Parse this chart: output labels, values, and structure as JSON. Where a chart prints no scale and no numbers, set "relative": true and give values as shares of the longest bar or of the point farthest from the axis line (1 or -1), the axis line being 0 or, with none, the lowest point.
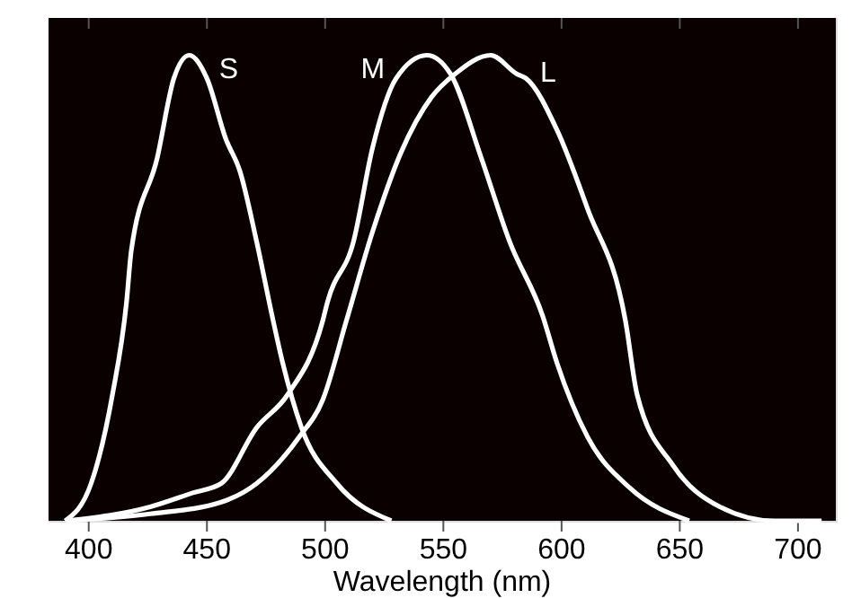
{
  "chart_data": {
    "type": "line",
    "relative": true,
    "xlabel": "Wavelength (nm)",
    "xlim": [
      383,
      716
    ],
    "xticks": [
      400,
      450,
      500,
      550,
      600,
      650,
      700
    ],
    "grid": false,
    "marker": "none",
    "line_style": "solid",
    "series": [
      {
        "name": "S",
        "color": "#ffffff",
        "x": [
          390,
          401,
          410,
          416,
          418,
          429,
          436,
          442.5,
          450,
          458,
          464,
          471,
          478,
          482,
          490,
          505,
          528
        ],
        "values": [
          0,
          0.08,
          0.27,
          0.47,
          0.58,
          0.78,
          0.95,
          1.0,
          0.95,
          0.82,
          0.75,
          0.6,
          0.43,
          0.34,
          0.2,
          0.08,
          0.0
        ]
      },
      {
        "name": "M",
        "color": "#ffffff",
        "x": [
          391,
          426,
          444,
          456,
          471,
          484,
          499,
          501,
          512,
          520,
          530,
          543,
          553,
          566,
          578,
          592,
          598,
          611,
          629,
          654
        ],
        "values": [
          0,
          0.03,
          0.06,
          0.08,
          0.2,
          0.27,
          0.43,
          0.47,
          0.6,
          0.8,
          0.95,
          1.0,
          0.96,
          0.78,
          0.6,
          0.44,
          0.34,
          0.18,
          0.07,
          0.0
        ]
      },
      {
        "name": "L",
        "color": "#ffffff",
        "x": [
          391,
          426,
          456,
          471,
          489,
          499,
          509,
          520,
          532,
          545,
          555,
          570,
          581,
          585,
          598,
          611,
          627,
          632,
          647,
          667,
          690,
          710
        ],
        "values": [
          0,
          0.015,
          0.04,
          0.08,
          0.18,
          0.26,
          0.43,
          0.62,
          0.79,
          0.91,
          0.96,
          1.0,
          0.96,
          0.95,
          0.84,
          0.67,
          0.43,
          0.27,
          0.12,
          0.03,
          0,
          0
        ]
      }
    ]
  }
}
